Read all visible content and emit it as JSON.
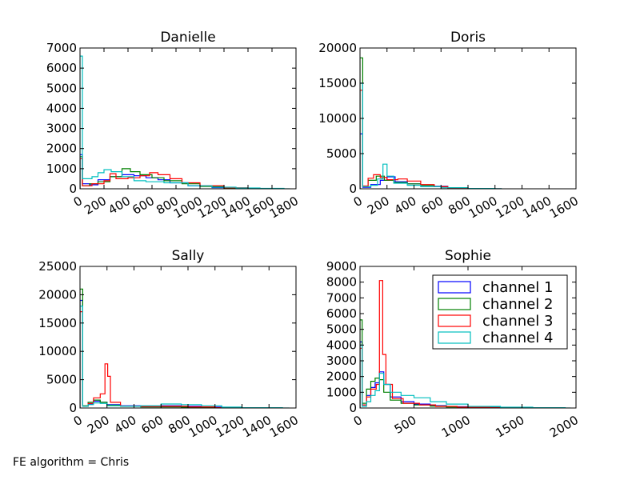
{
  "footer_text": "FE algorithm = Chris",
  "colors": {
    "channel 1": "#0000ff",
    "channel 2": "#008000",
    "channel 3": "#ff0000",
    "channel 4": "#00bfbf"
  },
  "legend": [
    "channel 1",
    "channel 2",
    "channel 3",
    "channel 4"
  ],
  "chart_data": [
    {
      "type": "histogram",
      "title": "Danielle",
      "xlim": [
        0,
        1800
      ],
      "ylim": [
        0,
        7000
      ],
      "xticks": [
        "0",
        "200",
        "400",
        "600",
        "800",
        "1000",
        "1200",
        "1400",
        "1600",
        "1800"
      ],
      "yticks": [
        "0",
        "1000",
        "2000",
        "3000",
        "4000",
        "5000",
        "6000",
        "7000"
      ],
      "series": [
        {
          "name": "channel 1",
          "points": [
            [
              0,
              1700
            ],
            [
              20,
              250
            ],
            [
              80,
              200
            ],
            [
              150,
              450
            ],
            [
              250,
              600
            ],
            [
              350,
              700
            ],
            [
              450,
              650
            ],
            [
              550,
              550
            ],
            [
              650,
              450
            ],
            [
              750,
              300
            ],
            [
              900,
              150
            ],
            [
              1100,
              60
            ],
            [
              1300,
              10
            ],
            [
              1500,
              0
            ]
          ]
        },
        {
          "name": "channel 2",
          "points": [
            [
              0,
              1600
            ],
            [
              20,
              150
            ],
            [
              80,
              250
            ],
            [
              150,
              350
            ],
            [
              250,
              600
            ],
            [
              350,
              1000
            ],
            [
              420,
              850
            ],
            [
              500,
              700
            ],
            [
              600,
              550
            ],
            [
              700,
              400
            ],
            [
              850,
              250
            ],
            [
              1000,
              120
            ],
            [
              1200,
              40
            ],
            [
              1400,
              0
            ]
          ]
        },
        {
          "name": "channel 3",
          "points": [
            [
              0,
              1500
            ],
            [
              20,
              150
            ],
            [
              100,
              250
            ],
            [
              200,
              400
            ],
            [
              250,
              750
            ],
            [
              300,
              500
            ],
            [
              400,
              550
            ],
            [
              500,
              650
            ],
            [
              580,
              800
            ],
            [
              650,
              700
            ],
            [
              750,
              500
            ],
            [
              850,
              300
            ],
            [
              1000,
              150
            ],
            [
              1200,
              50
            ],
            [
              1400,
              0
            ]
          ]
        },
        {
          "name": "channel 4",
          "points": [
            [
              0,
              6600
            ],
            [
              20,
              500
            ],
            [
              100,
              600
            ],
            [
              150,
              800
            ],
            [
              200,
              950
            ],
            [
              260,
              850
            ],
            [
              350,
              600
            ],
            [
              450,
              400
            ],
            [
              550,
              350
            ],
            [
              700,
              300
            ],
            [
              900,
              150
            ],
            [
              1100,
              80
            ],
            [
              1300,
              40
            ],
            [
              1500,
              20
            ],
            [
              1700,
              0
            ]
          ]
        }
      ]
    },
    {
      "type": "histogram",
      "title": "Doris",
      "xlim": [
        0,
        1600
      ],
      "ylim": [
        0,
        20000
      ],
      "xticks": [
        "0",
        "200",
        "400",
        "600",
        "800",
        "1000",
        "1200",
        "1400",
        "1600"
      ],
      "yticks": [
        "0",
        "5000",
        "10000",
        "15000",
        "20000"
      ],
      "series": [
        {
          "name": "channel 1",
          "points": [
            [
              0,
              7800
            ],
            [
              20,
              200
            ],
            [
              80,
              600
            ],
            [
              150,
              1200
            ],
            [
              200,
              1700
            ],
            [
              260,
              1000
            ],
            [
              350,
              700
            ],
            [
              450,
              500
            ],
            [
              550,
              350
            ],
            [
              650,
              150
            ],
            [
              800,
              50
            ],
            [
              1000,
              0
            ]
          ]
        },
        {
          "name": "channel 2",
          "points": [
            [
              0,
              18600
            ],
            [
              20,
              300
            ],
            [
              60,
              1200
            ],
            [
              120,
              1800
            ],
            [
              180,
              1200
            ],
            [
              250,
              900
            ],
            [
              350,
              700
            ],
            [
              450,
              500
            ],
            [
              550,
              300
            ],
            [
              650,
              150
            ],
            [
              800,
              50
            ],
            [
              1000,
              0
            ]
          ]
        },
        {
          "name": "channel 3",
          "points": [
            [
              0,
              14000
            ],
            [
              20,
              400
            ],
            [
              60,
              1500
            ],
            [
              100,
              2000
            ],
            [
              150,
              1600
            ],
            [
              200,
              1300
            ],
            [
              280,
              1400
            ],
            [
              350,
              1100
            ],
            [
              450,
              600
            ],
            [
              550,
              300
            ],
            [
              650,
              100
            ],
            [
              800,
              0
            ]
          ]
        },
        {
          "name": "channel 4",
          "points": [
            [
              0,
              15000
            ],
            [
              20,
              300
            ],
            [
              80,
              500
            ],
            [
              130,
              1400
            ],
            [
              170,
              3500
            ],
            [
              200,
              1800
            ],
            [
              250,
              800
            ],
            [
              350,
              500
            ],
            [
              450,
              300
            ],
            [
              600,
              150
            ],
            [
              800,
              50
            ],
            [
              1000,
              0
            ]
          ]
        }
      ]
    },
    {
      "type": "histogram",
      "title": "Sally",
      "xlim": [
        0,
        1600
      ],
      "ylim": [
        0,
        25000
      ],
      "xticks": [
        "0",
        "200",
        "400",
        "600",
        "800",
        "1000",
        "1200",
        "1400",
        "1600"
      ],
      "yticks": [
        "0",
        "5000",
        "10000",
        "15000",
        "20000",
        "25000"
      ],
      "series": [
        {
          "name": "channel 1",
          "points": [
            [
              0,
              19000
            ],
            [
              20,
              300
            ],
            [
              60,
              700
            ],
            [
              100,
              1200
            ],
            [
              150,
              1000
            ],
            [
              200,
              600
            ],
            [
              300,
              400
            ],
            [
              450,
              300
            ],
            [
              600,
              400
            ],
            [
              750,
              300
            ],
            [
              900,
              150
            ],
            [
              1050,
              50
            ],
            [
              1200,
              0
            ]
          ]
        },
        {
          "name": "channel 2",
          "points": [
            [
              0,
              21000
            ],
            [
              20,
              400
            ],
            [
              60,
              1000
            ],
            [
              100,
              1400
            ],
            [
              150,
              1000
            ],
            [
              200,
              500
            ],
            [
              300,
              300
            ],
            [
              450,
              200
            ],
            [
              600,
              200
            ],
            [
              750,
              150
            ],
            [
              900,
              50
            ],
            [
              1100,
              0
            ]
          ]
        },
        {
          "name": "channel 3",
          "points": [
            [
              0,
              17000
            ],
            [
              20,
              300
            ],
            [
              60,
              800
            ],
            [
              100,
              1800
            ],
            [
              150,
              2500
            ],
            [
              185,
              7800
            ],
            [
              205,
              5600
            ],
            [
              225,
              1000
            ],
            [
              300,
              300
            ],
            [
              450,
              250
            ],
            [
              600,
              300
            ],
            [
              800,
              200
            ],
            [
              1000,
              50
            ],
            [
              1200,
              0
            ]
          ]
        },
        {
          "name": "channel 4",
          "points": [
            [
              0,
              18000
            ],
            [
              20,
              300
            ],
            [
              60,
              600
            ],
            [
              100,
              900
            ],
            [
              150,
              800
            ],
            [
              200,
              400
            ],
            [
              300,
              300
            ],
            [
              450,
              400
            ],
            [
              600,
              700
            ],
            [
              750,
              600
            ],
            [
              900,
              400
            ],
            [
              1050,
              150
            ],
            [
              1200,
              50
            ],
            [
              1500,
              0
            ]
          ]
        }
      ]
    },
    {
      "type": "histogram",
      "title": "Sophie",
      "xlim": [
        0,
        2000
      ],
      "ylim": [
        0,
        9000
      ],
      "xticks": [
        "0",
        "500",
        "1000",
        "1500",
        "2000"
      ],
      "yticks": [
        "0",
        "1000",
        "2000",
        "3000",
        "4000",
        "5000",
        "6000",
        "7000",
        "8000",
        "9000"
      ],
      "series": [
        {
          "name": "channel 1",
          "points": [
            [
              0,
              4200
            ],
            [
              20,
              200
            ],
            [
              60,
              800
            ],
            [
              100,
              1300
            ],
            [
              140,
              1600
            ],
            [
              180,
              2300
            ],
            [
              220,
              1500
            ],
            [
              280,
              700
            ],
            [
              380,
              400
            ],
            [
              500,
              250
            ],
            [
              650,
              150
            ],
            [
              800,
              80
            ],
            [
              1000,
              40
            ],
            [
              1300,
              20
            ],
            [
              1600,
              0
            ]
          ]
        },
        {
          "name": "channel 2",
          "points": [
            [
              0,
              5600
            ],
            [
              20,
              300
            ],
            [
              60,
              1200
            ],
            [
              100,
              1700
            ],
            [
              140,
              1900
            ],
            [
              180,
              1800
            ],
            [
              220,
              1000
            ],
            [
              280,
              500
            ],
            [
              380,
              300
            ],
            [
              500,
              200
            ],
            [
              650,
              120
            ],
            [
              800,
              60
            ],
            [
              1000,
              30
            ],
            [
              1300,
              10
            ],
            [
              1600,
              0
            ]
          ]
        },
        {
          "name": "channel 3",
          "points": [
            [
              0,
              3800
            ],
            [
              20,
              200
            ],
            [
              60,
              700
            ],
            [
              100,
              1200
            ],
            [
              150,
              1500
            ],
            [
              180,
              8100
            ],
            [
              210,
              3400
            ],
            [
              240,
              1500
            ],
            [
              300,
              600
            ],
            [
              400,
              300
            ],
            [
              550,
              200
            ],
            [
              700,
              100
            ],
            [
              900,
              50
            ],
            [
              1200,
              20
            ],
            [
              1600,
              0
            ]
          ]
        },
        {
          "name": "channel 4",
          "points": [
            [
              0,
              4000
            ],
            [
              20,
              100
            ],
            [
              60,
              400
            ],
            [
              100,
              800
            ],
            [
              140,
              1100
            ],
            [
              180,
              2200
            ],
            [
              220,
              1500
            ],
            [
              280,
              1000
            ],
            [
              380,
              800
            ],
            [
              500,
              650
            ],
            [
              650,
              400
            ],
            [
              800,
              250
            ],
            [
              1000,
              100
            ],
            [
              1300,
              50
            ],
            [
              1600,
              20
            ],
            [
              1900,
              0
            ]
          ]
        }
      ]
    }
  ]
}
